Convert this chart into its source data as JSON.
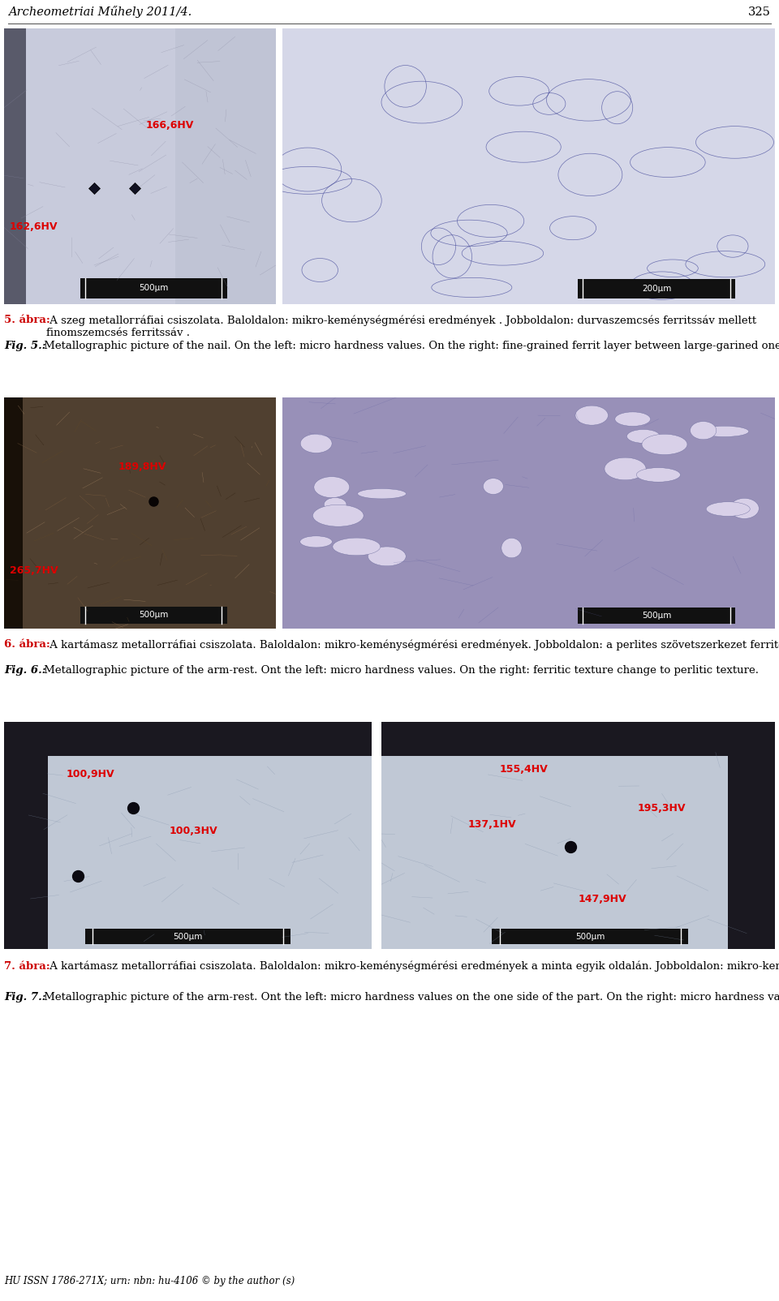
{
  "page_title": "Archeometriai Műhely 2011/4.",
  "page_number": "325",
  "footer": "HU ISSN 1786-271X; urn: nbn: hu-4106 © by the author (s)",
  "bg": "#ffffff",
  "text_color": "#000000",
  "red_text": "#cc0000",
  "cap5_bold": "5. ábra:",
  "cap5_rest": " A szeg metallогráfiai csiszolata. Baloldalon: mikro-keménységmérési eredmények . Jobboldalon: durvaszemcsés ferritssáv mellett finomszemcsés ferritssáv .",
  "cap5_en_bold": "Fig. 5.:",
  "cap5_en_rest": " Metallographic picture of the nail. On the left: micro hardness values. On the right: fine-grained ferrit layer between large-garined one.",
  "cap6_bold": "6. ábra:",
  "cap6_rest": " A kartámasz metallогráfiai csiszolata. Baloldalon: mikro-keménységmérési eredmények. Jobboldalon: a perlites szövetszerkezet ferritesbe megy át .",
  "cap6_en_bold": "Fig. 6.:",
  "cap6_en_rest": " Metallographic picture of the arm-rest. Ont the left: micro hardness values. On the right: ferritic texture change to perlitic texture.",
  "cap7_bold": "7. ábra:",
  "cap7_rest": " A kartámasz metallогráfiai csiszolata. Baloldalon: mikro-keménységmérési eredmények a minta egyik oldalán. Jobboldalon: mikro-keménységmérési eredmények a minta másik oldalán.",
  "cap7_en_bold": "Fig. 7.:",
  "cap7_en_rest": " Metallographic picture of the arm-rest. Ont the left: micro hardness values on the one side of the part. On the right: micro hardness values on the other side of the part.",
  "img1L_color": "#c5c8d8",
  "img1R_color": "#d2d4e5",
  "img2L_color": "#7a6040",
  "img2R_color": "#9090b0",
  "img3L_color": "#c0c8d5",
  "img3R_color": "#c0c8d5",
  "scalebar_color": "#111111",
  "hv_red": "#dd0000",
  "hv_orange": "#cc6600"
}
